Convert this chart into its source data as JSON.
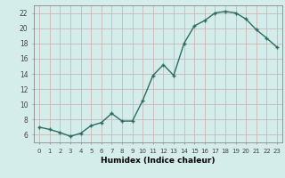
{
  "x": [
    0,
    1,
    2,
    3,
    4,
    5,
    6,
    7,
    8,
    9,
    10,
    11,
    12,
    13,
    14,
    15,
    16,
    17,
    18,
    19,
    20,
    21,
    22,
    23
  ],
  "y": [
    7.0,
    6.7,
    6.3,
    5.8,
    6.2,
    7.2,
    7.6,
    8.8,
    7.8,
    7.8,
    10.5,
    13.8,
    15.2,
    13.8,
    18.0,
    20.3,
    21.0,
    22.0,
    22.2,
    22.0,
    21.2,
    19.8,
    18.7,
    17.5
  ],
  "xlabel": "Humidex (Indice chaleur)",
  "ylim": [
    5.0,
    23.0
  ],
  "xlim": [
    -0.5,
    23.5
  ],
  "yticks": [
    6,
    8,
    10,
    12,
    14,
    16,
    18,
    20,
    22
  ],
  "xtick_labels": [
    "0",
    "1",
    "2",
    "3",
    "4",
    "5",
    "6",
    "7",
    "8",
    "9",
    "10",
    "11",
    "12",
    "13",
    "14",
    "15",
    "16",
    "17",
    "18",
    "19",
    "20",
    "21",
    "22",
    "23"
  ],
  "line_color": "#2a6e62",
  "marker": "+",
  "bg_color": "#d4ecea",
  "grid_color": "#c8b8b8",
  "spine_color": "#888888",
  "tick_color": "#444444"
}
